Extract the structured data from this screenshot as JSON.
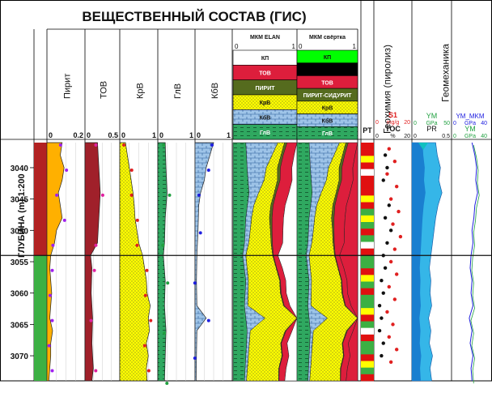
{
  "chart_data": {
    "type": "well-log",
    "title": "ВЕЩЕСТВЕННЫЙ СОСТАВ (ГИС)",
    "depth_axis": {
      "label": "ГЛУБИНА (m) 1:200",
      "range": [
        3036,
        3074
      ],
      "ticks": [
        3040,
        3045,
        3050,
        3055,
        3060,
        3065,
        3070
      ]
    },
    "facies_zones": [
      {
        "from": 3036,
        "to": 3054,
        "color": "#b22222"
      },
      {
        "from": 3054,
        "to": 3074,
        "color": "#3cb043"
      }
    ],
    "boundary_depth": 3054,
    "tracks": [
      {
        "label": "Пирит",
        "min": "0",
        "max": "0.2",
        "fill": "#ffb000",
        "points": [
          [
            3036,
            0.08
          ],
          [
            3038,
            0.07
          ],
          [
            3040,
            0.09
          ],
          [
            3042,
            0.08
          ],
          [
            3044,
            0.06
          ],
          [
            3046,
            0.07
          ],
          [
            3048,
            0.08
          ],
          [
            3050,
            0.05
          ],
          [
            3052,
            0.04
          ],
          [
            3054,
            0.02
          ],
          [
            3056,
            0.015
          ],
          [
            3058,
            0.02
          ],
          [
            3060,
            0.025
          ],
          [
            3062,
            0.02
          ],
          [
            3064,
            0.015
          ],
          [
            3066,
            0.03
          ],
          [
            3068,
            0.02
          ],
          [
            3070,
            0.02
          ],
          [
            3072,
            0.015
          ],
          [
            3074,
            0.01
          ]
        ]
      },
      {
        "label": "ТОВ",
        "min": "0",
        "max": "0.5",
        "fill": "#a0202a",
        "points": [
          [
            3036,
            0.18
          ],
          [
            3040,
            0.2
          ],
          [
            3044,
            0.22
          ],
          [
            3048,
            0.2
          ],
          [
            3052,
            0.18
          ],
          [
            3054,
            0.08
          ],
          [
            3056,
            0.1
          ],
          [
            3060,
            0.09
          ],
          [
            3064,
            0.11
          ],
          [
            3068,
            0.1
          ],
          [
            3072,
            0.12
          ],
          [
            3074,
            0.1
          ]
        ]
      },
      {
        "label": "КрВ",
        "min": "0",
        "max": "1",
        "fill": "#ffff00",
        "points": [
          [
            3036,
            0.15
          ],
          [
            3038,
            0.2
          ],
          [
            3040,
            0.25
          ],
          [
            3042,
            0.3
          ],
          [
            3044,
            0.35
          ],
          [
            3046,
            0.38
          ],
          [
            3048,
            0.4
          ],
          [
            3050,
            0.45
          ],
          [
            3052,
            0.5
          ],
          [
            3054,
            0.6
          ],
          [
            3056,
            0.65
          ],
          [
            3058,
            0.7
          ],
          [
            3060,
            0.72
          ],
          [
            3062,
            0.8
          ],
          [
            3064,
            0.75
          ],
          [
            3066,
            0.78
          ],
          [
            3068,
            0.7
          ],
          [
            3070,
            0.75
          ],
          [
            3072,
            0.7
          ],
          [
            3074,
            0.72
          ]
        ]
      },
      {
        "label": "ГлВ",
        "min": "0",
        "max": "1",
        "fill": "#2fa860",
        "points": [
          [
            3036,
            0.2
          ],
          [
            3040,
            0.22
          ],
          [
            3044,
            0.25
          ],
          [
            3048,
            0.2
          ],
          [
            3052,
            0.18
          ],
          [
            3054,
            0.15
          ],
          [
            3058,
            0.2
          ],
          [
            3062,
            0.18
          ],
          [
            3066,
            0.22
          ],
          [
            3070,
            0.2
          ],
          [
            3074,
            0.18
          ]
        ]
      },
      {
        "label": "КбВ",
        "min": "0",
        "max": "1",
        "fill": "#8fb8e8",
        "points": [
          [
            3036,
            0.5
          ],
          [
            3038,
            0.4
          ],
          [
            3040,
            0.3
          ],
          [
            3042,
            0.25
          ],
          [
            3044,
            0.15
          ],
          [
            3046,
            0.1
          ],
          [
            3050,
            0.08
          ],
          [
            3054,
            0.05
          ],
          [
            3058,
            0.04
          ],
          [
            3062,
            0.05
          ],
          [
            3064,
            0.3
          ],
          [
            3066,
            0.05
          ],
          [
            3070,
            0.04
          ],
          [
            3074,
            0.03
          ]
        ]
      }
    ],
    "elan_panel": {
      "title": "МКМ ELAN",
      "scale_min": "0",
      "scale_max": "1",
      "legend": [
        {
          "label": "КП",
          "color": "#ffffff"
        },
        {
          "label": "ТОВ",
          "color": "#dd1e3c"
        },
        {
          "label": "ПИРИТ",
          "color": "#556b1e"
        },
        {
          "label": "КрВ",
          "color": "#ffff00"
        },
        {
          "label": "КбВ",
          "color": "#9ec4e8"
        },
        {
          "label": "ГлВ",
          "color": "#2fa860"
        }
      ]
    },
    "svertka_panel": {
      "title": "МКМ свёртка",
      "scale_min": "0",
      "scale_max": "1",
      "legend": [
        {
          "label": "КП",
          "color": "#00ff00"
        },
        {
          "label": "",
          "color": "#000000"
        },
        {
          "label": "ТОВ",
          "color": "#dd1e3c"
        },
        {
          "label": "ПИРИТ-СИДУРИТ",
          "color": "#556b1e"
        },
        {
          "label": "КрВ",
          "color": "#ffff00"
        },
        {
          "label": "КбВ",
          "color": "#9ec4e8"
        },
        {
          "label": "ГлВ",
          "color": "#2fa860"
        }
      ]
    },
    "pt_track": {
      "label": "PT"
    },
    "geochem": {
      "title": "Геохимия (пиролиз)",
      "s1": {
        "name": "S1",
        "min": "0",
        "unit": "mg/g",
        "max": "20",
        "color": "#e02020",
        "points": [
          [
            3037,
            8
          ],
          [
            3039,
            11
          ],
          [
            3041,
            7
          ],
          [
            3043,
            12
          ],
          [
            3045,
            9
          ],
          [
            3047,
            13
          ],
          [
            3049,
            10
          ],
          [
            3051,
            14
          ],
          [
            3053,
            11
          ],
          [
            3055,
            9
          ],
          [
            3057,
            12
          ],
          [
            3059,
            8
          ],
          [
            3061,
            11
          ],
          [
            3063,
            7
          ],
          [
            3065,
            10
          ],
          [
            3067,
            8
          ],
          [
            3069,
            12
          ],
          [
            3071,
            9
          ]
        ]
      },
      "toc": {
        "name": "TOC",
        "min": "0",
        "unit": "%",
        "max": "20",
        "color": "#111111",
        "points": [
          [
            3038,
            6
          ],
          [
            3040,
            7
          ],
          [
            3042,
            5
          ],
          [
            3046,
            8
          ],
          [
            3048,
            6
          ],
          [
            3050,
            9
          ],
          [
            3052,
            7
          ],
          [
            3054,
            5
          ],
          [
            3056,
            6
          ],
          [
            3058,
            4
          ],
          [
            3060,
            5
          ],
          [
            3062,
            3
          ],
          [
            3064,
            4
          ],
          [
            3066,
            3
          ],
          [
            3068,
            5
          ],
          [
            3070,
            4
          ]
        ]
      }
    },
    "geomech": {
      "title": "Геомеханика",
      "ym": {
        "name": "YM",
        "min": "0",
        "unit": "GPa",
        "max": "50"
      },
      "pr": {
        "name": "PR",
        "min": "0",
        "max": "0.5"
      },
      "ym_mkm": {
        "name": "YM_MKM",
        "min": "0",
        "unit": "GPa",
        "max": "40"
      },
      "ym2": {
        "name": "YM",
        "min": "0",
        "unit": "GPa",
        "max": "40"
      },
      "ym_points": [
        [
          3036,
          30
        ],
        [
          3038,
          32
        ],
        [
          3040,
          36
        ],
        [
          3042,
          34
        ],
        [
          3044,
          38
        ],
        [
          3046,
          33
        ],
        [
          3048,
          30
        ],
        [
          3050,
          28
        ],
        [
          3052,
          26
        ],
        [
          3054,
          24
        ],
        [
          3056,
          22
        ],
        [
          3058,
          24
        ],
        [
          3060,
          23
        ],
        [
          3062,
          25
        ],
        [
          3064,
          21
        ],
        [
          3066,
          24
        ],
        [
          3068,
          22
        ],
        [
          3070,
          26
        ],
        [
          3072,
          23
        ],
        [
          3074,
          25
        ]
      ],
      "ym_mkm_points": [
        [
          3036,
          22
        ],
        [
          3038,
          25
        ],
        [
          3040,
          27
        ],
        [
          3042,
          26
        ],
        [
          3044,
          28
        ],
        [
          3046,
          25
        ],
        [
          3048,
          24
        ],
        [
          3050,
          22
        ],
        [
          3052,
          23
        ],
        [
          3054,
          21
        ],
        [
          3056,
          20
        ],
        [
          3058,
          22
        ],
        [
          3060,
          21
        ],
        [
          3062,
          23
        ],
        [
          3064,
          19
        ],
        [
          3066,
          22
        ],
        [
          3068,
          20
        ],
        [
          3070,
          23
        ],
        [
          3072,
          21
        ],
        [
          3074,
          22
        ]
      ]
    }
  }
}
